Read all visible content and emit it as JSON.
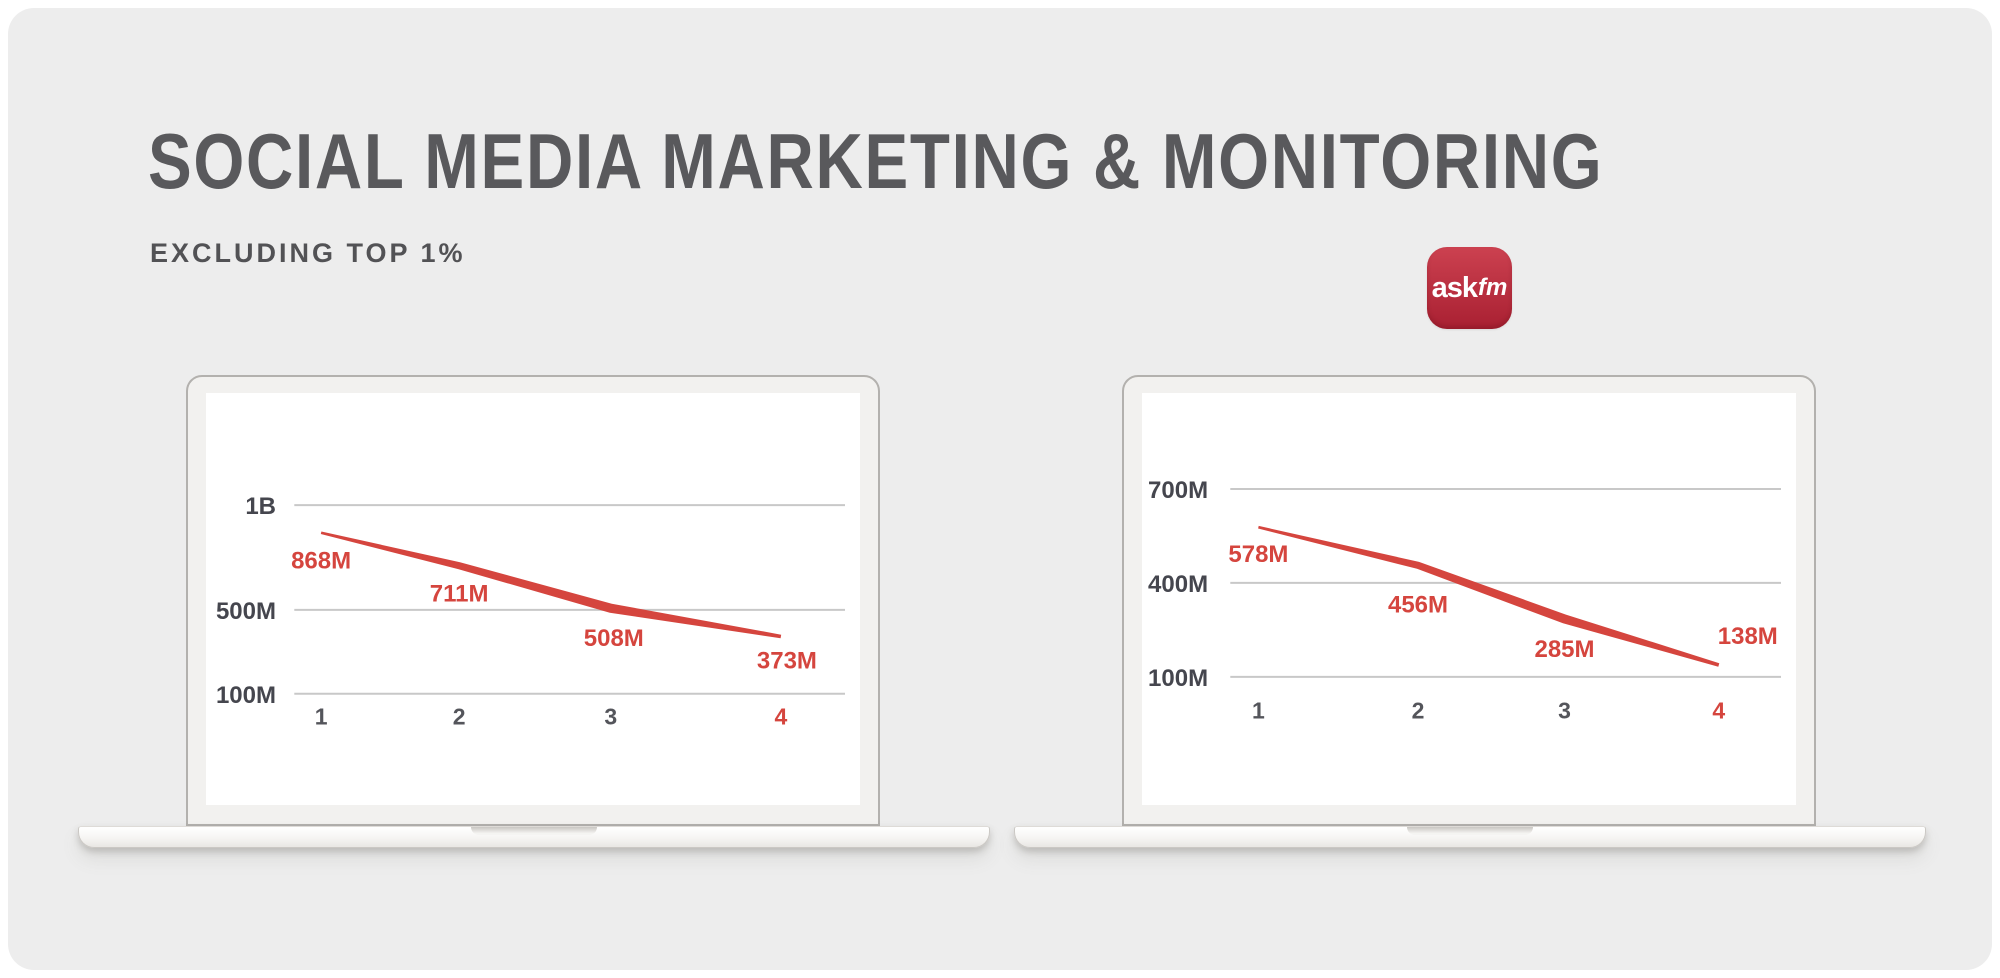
{
  "slide": {
    "title": "SOCIAL MEDIA MARKETING & MONITORING",
    "subtitle": "EXCLUDING TOP 1%"
  },
  "logo": {
    "brand": "ASKfm",
    "text_primary": "ask",
    "text_secondary": "fm"
  },
  "colors": {
    "accent_red": "#d5453e",
    "grid_line": "#c8c8c8",
    "y_tick_text": "#45464e",
    "x_tick_text": "#54555b",
    "title_text": "#59595c",
    "panel_background": "#ededed",
    "logo_gradient_top": "#cc4150",
    "logo_gradient_bottom": "#a92032"
  },
  "chart_data": [
    {
      "type": "line",
      "title": "",
      "categories": [
        "1",
        "2",
        "3",
        "4"
      ],
      "values": [
        868,
        711,
        508,
        373
      ],
      "value_labels": [
        "868M",
        "711M",
        "508M",
        "373M"
      ],
      "unit": "M",
      "y_ticks": [
        {
          "value": 1000,
          "label": "1B"
        },
        {
          "value": 500,
          "label": "500M"
        },
        {
          "value": 100,
          "label": "100M"
        }
      ],
      "ylim": [
        100,
        1000
      ],
      "grid": true,
      "legend": "none",
      "series_color": "#d5453e",
      "highlighted_category_index": 3
    },
    {
      "type": "line",
      "title": "",
      "categories": [
        "1",
        "2",
        "3",
        "4"
      ],
      "values": [
        578,
        456,
        285,
        138
      ],
      "value_labels": [
        "578M",
        "456M",
        "285M",
        "138M"
      ],
      "unit": "M",
      "y_ticks": [
        {
          "value": 700,
          "label": "700M"
        },
        {
          "value": 400,
          "label": "400M"
        },
        {
          "value": 100,
          "label": "100M"
        }
      ],
      "ylim": [
        100,
        700
      ],
      "grid": true,
      "legend": "none",
      "series_color": "#d5453e",
      "highlighted_category_index": 3
    }
  ]
}
